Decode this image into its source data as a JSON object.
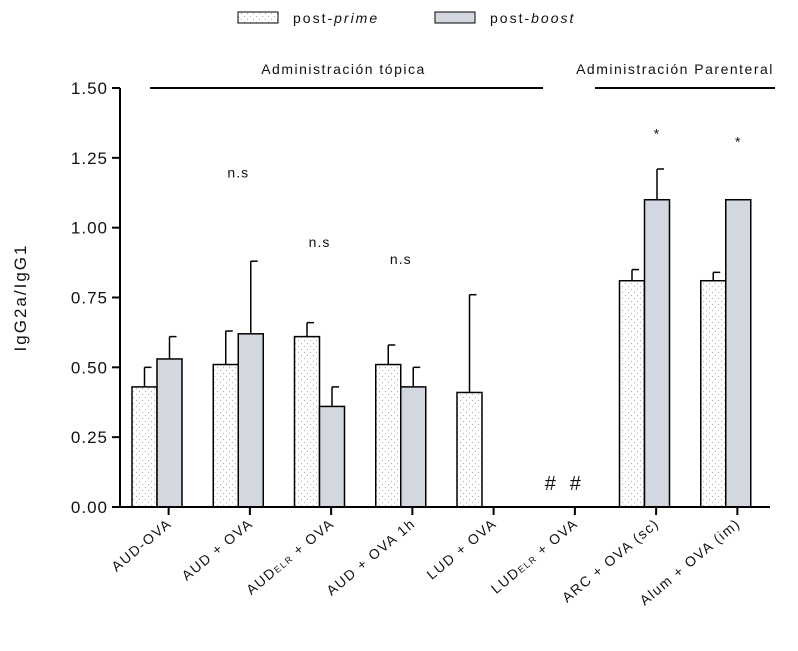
{
  "chart_data": {
    "type": "bar",
    "ylabel": "IgG2a/IgG1",
    "ylim": [
      0,
      1.5
    ],
    "yticks": [
      "0.00",
      "0.25",
      "0.50",
      "0.75",
      "1.00",
      "1.25",
      "1.50"
    ],
    "categories": [
      {
        "label": "AUD-OVA"
      },
      {
        "label": "AUD + OVA"
      },
      {
        "label": "AUD",
        "sub": "ELR",
        "rest": " + OVA"
      },
      {
        "label": "AUD + OVA 1h"
      },
      {
        "label": "LUD + OVA"
      },
      {
        "label": "LUD",
        "sub": "ELR",
        "rest": " + OVA"
      },
      {
        "label": "ARC + OVA (sc)"
      },
      {
        "label": "Alum + OVA (im)"
      }
    ],
    "series": [
      {
        "name": "post-prime",
        "prefix": "post-",
        "emph": "prime",
        "fill": "#ffffff",
        "pattern": "dots",
        "values": [
          0.43,
          0.51,
          0.61,
          0.51,
          0.41,
          null,
          0.81,
          0.81
        ],
        "errors": [
          0.07,
          0.12,
          0.05,
          0.07,
          0.35,
          null,
          0.04,
          0.03
        ]
      },
      {
        "name": "post-boost",
        "prefix": "post-",
        "emph": "boost",
        "fill": "#d3d7e0",
        "pattern": "none",
        "values": [
          0.53,
          0.62,
          0.36,
          0.43,
          null,
          null,
          1.1,
          1.1
        ],
        "errors": [
          0.08,
          0.26,
          0.07,
          0.07,
          null,
          null,
          0.11,
          null
        ]
      }
    ],
    "group_labels": [
      {
        "text": "Administración tópica",
        "from": 0,
        "to": 5
      },
      {
        "text": "Administración Parenteral",
        "from": 6,
        "to": 7
      }
    ],
    "annotations": [
      {
        "text": "n.s",
        "category": 1,
        "y": 1.18
      },
      {
        "text": "n.s",
        "category": 2,
        "y": 0.93
      },
      {
        "text": "n.s",
        "category": 3,
        "y": 0.87
      },
      {
        "text": "*",
        "category": 6,
        "y": 1.32
      },
      {
        "text": "*",
        "category": 7,
        "y": 1.29
      },
      {
        "text": "#",
        "category": 5,
        "series": 0,
        "y": 0.06
      },
      {
        "text": "#",
        "category": 5,
        "series": 1,
        "y": 0.06
      }
    ]
  }
}
